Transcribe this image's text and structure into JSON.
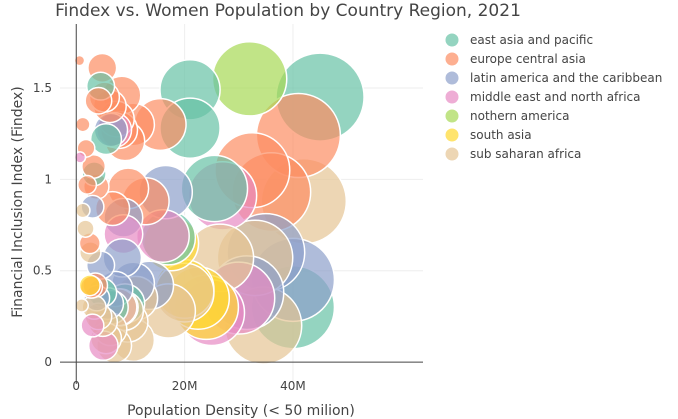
{
  "chart_data": {
    "type": "scatter",
    "title": "Findex vs. Women Population by Country Region, 2021",
    "xlabel": "Population Density (< 50 milion)",
    "ylabel": "Financial Inclusion Index (Findex)",
    "xlim": [
      -3000000,
      64000000
    ],
    "ylim": [
      -0.12,
      1.85
    ],
    "x_ticks": [
      {
        "value": 0,
        "label": "0"
      },
      {
        "value": 20000000,
        "label": "20M"
      },
      {
        "value": 40000000,
        "label": "40M"
      }
    ],
    "y_ticks": [
      {
        "value": 0,
        "label": "0"
      },
      {
        "value": 0.5,
        "label": "0.5"
      },
      {
        "value": 1,
        "label": "1"
      },
      {
        "value": 1.5,
        "label": "1.5"
      }
    ],
    "grid": true,
    "legend_position": "right",
    "series": [
      {
        "name": "east asia and pacific",
        "color": "#66c2a5",
        "points": [
          {
            "x": 45000000,
            "y": 1.45,
            "size": 45000000
          },
          {
            "x": 40000000,
            "y": 0.3,
            "size": 40000000
          },
          {
            "x": 25500000,
            "y": 0.95,
            "size": 25500000
          },
          {
            "x": 21000000,
            "y": 1.49,
            "size": 21000000
          },
          {
            "x": 21000000,
            "y": 1.28,
            "size": 21000000
          },
          {
            "x": 17000000,
            "y": 0.68,
            "size": 17000000
          },
          {
            "x": 3300000,
            "y": 1.03,
            "size": 3300000
          },
          {
            "x": 4500000,
            "y": 1.51,
            "size": 4500000
          },
          {
            "x": 4800000,
            "y": 0.38,
            "size": 4800000
          },
          {
            "x": 5500000,
            "y": 1.22,
            "size": 5500000
          },
          {
            "x": 6500000,
            "y": 0.3,
            "size": 6500000
          },
          {
            "x": 9000000,
            "y": 0.32,
            "size": 9000000
          }
        ]
      },
      {
        "name": "europe central asia",
        "color": "#fc8d62",
        "points": [
          {
            "x": 600000,
            "y": 1.65,
            "size": 600000
          },
          {
            "x": 1200000,
            "y": 1.3,
            "size": 1200000
          },
          {
            "x": 1800000,
            "y": 1.17,
            "size": 1800000
          },
          {
            "x": 2000000,
            "y": 0.97,
            "size": 2000000
          },
          {
            "x": 2500000,
            "y": 0.65,
            "size": 2500000
          },
          {
            "x": 2800000,
            "y": 0.41,
            "size": 2800000
          },
          {
            "x": 3200000,
            "y": 1.07,
            "size": 3200000
          },
          {
            "x": 3500000,
            "y": 0.42,
            "size": 3500000
          },
          {
            "x": 3700000,
            "y": 0.96,
            "size": 3700000
          },
          {
            "x": 4100000,
            "y": 1.43,
            "size": 4100000
          },
          {
            "x": 4800000,
            "y": 1.61,
            "size": 4800000
          },
          {
            "x": 5200000,
            "y": 1.45,
            "size": 5200000
          },
          {
            "x": 6200000,
            "y": 1.4,
            "size": 6200000
          },
          {
            "x": 6700000,
            "y": 0.84,
            "size": 6700000
          },
          {
            "x": 7400000,
            "y": 1.33,
            "size": 7400000
          },
          {
            "x": 7900000,
            "y": 1.27,
            "size": 7900000
          },
          {
            "x": 8400000,
            "y": 1.46,
            "size": 8400000
          },
          {
            "x": 9000000,
            "y": 1.21,
            "size": 9000000
          },
          {
            "x": 9600000,
            "y": 0.95,
            "size": 9600000
          },
          {
            "x": 10500000,
            "y": 1.3,
            "size": 10500000
          },
          {
            "x": 12800000,
            "y": 0.88,
            "size": 12800000
          },
          {
            "x": 15500000,
            "y": 1.3,
            "size": 15500000
          },
          {
            "x": 32500000,
            "y": 1.05,
            "size": 32500000
          },
          {
            "x": 36000000,
            "y": 0.93,
            "size": 36000000
          },
          {
            "x": 41000000,
            "y": 1.24,
            "size": 41000000
          }
        ]
      },
      {
        "name": "latin america and the caribbean",
        "color": "#8da0cb",
        "points": [
          {
            "x": 3000000,
            "y": 0.85,
            "size": 3000000
          },
          {
            "x": 3800000,
            "y": 0.35,
            "size": 3800000
          },
          {
            "x": 4500000,
            "y": 0.53,
            "size": 4500000
          },
          {
            "x": 5800000,
            "y": 0.32,
            "size": 5800000
          },
          {
            "x": 6400000,
            "y": 1.27,
            "size": 6400000
          },
          {
            "x": 7200000,
            "y": 0.4,
            "size": 7200000
          },
          {
            "x": 8500000,
            "y": 0.57,
            "size": 8500000
          },
          {
            "x": 8700000,
            "y": 0.79,
            "size": 8700000
          },
          {
            "x": 10500000,
            "y": 0.43,
            "size": 10500000
          },
          {
            "x": 13500000,
            "y": 0.42,
            "size": 13500000
          },
          {
            "x": 16500000,
            "y": 0.93,
            "size": 16500000
          },
          {
            "x": 31500000,
            "y": 0.38,
            "size": 31500000
          },
          {
            "x": 35000000,
            "y": 0.6,
            "size": 35000000
          },
          {
            "x": 40000000,
            "y": 0.45,
            "size": 40000000
          }
        ]
      },
      {
        "name": "middle east and north africa",
        "color": "#e78ac3",
        "points": [
          {
            "x": 700000,
            "y": 1.12,
            "size": 700000
          },
          {
            "x": 3000000,
            "y": 0.2,
            "size": 3000000
          },
          {
            "x": 5000000,
            "y": 0.09,
            "size": 5000000
          },
          {
            "x": 7000000,
            "y": 1.27,
            "size": 7000000
          },
          {
            "x": 8000000,
            "y": 0.3,
            "size": 8000000
          },
          {
            "x": 8700000,
            "y": 0.7,
            "size": 8700000
          },
          {
            "x": 16000000,
            "y": 0.69,
            "size": 16000000
          },
          {
            "x": 25000000,
            "y": 0.27,
            "size": 25000000
          },
          {
            "x": 27000000,
            "y": 0.91,
            "size": 27000000
          },
          {
            "x": 30000000,
            "y": 0.35,
            "size": 30000000
          }
        ]
      },
      {
        "name": "nothern america",
        "color": "#a6d854",
        "points": [
          {
            "x": 32000000,
            "y": 1.55,
            "size": 32000000
          }
        ]
      },
      {
        "name": "south asia",
        "color": "#ffd92f",
        "points": [
          {
            "x": 2500000,
            "y": 0.42,
            "size": 2500000
          },
          {
            "x": 17500000,
            "y": 0.65,
            "size": 17500000
          },
          {
            "x": 20000000,
            "y": 0.4,
            "size": 20000000
          },
          {
            "x": 24000000,
            "y": 0.3,
            "size": 24000000
          },
          {
            "x": 22500000,
            "y": 0.35,
            "size": 22500000
          }
        ]
      },
      {
        "name": "sub saharan africa",
        "color": "#e5c494",
        "points": [
          {
            "x": 1000000,
            "y": 0.31,
            "size": 1000000
          },
          {
            "x": 1200000,
            "y": 0.83,
            "size": 1200000
          },
          {
            "x": 1700000,
            "y": 0.73,
            "size": 1700000
          },
          {
            "x": 2600000,
            "y": 0.6,
            "size": 2600000
          },
          {
            "x": 3300000,
            "y": 0.3,
            "size": 3300000
          },
          {
            "x": 4100000,
            "y": 0.25,
            "size": 4100000
          },
          {
            "x": 4900000,
            "y": 0.22,
            "size": 4900000
          },
          {
            "x": 5500000,
            "y": 0.13,
            "size": 5500000
          },
          {
            "x": 6300000,
            "y": 0.18,
            "size": 6300000
          },
          {
            "x": 7000000,
            "y": 0.09,
            "size": 7000000
          },
          {
            "x": 7800000,
            "y": 0.3,
            "size": 7800000
          },
          {
            "x": 8800000,
            "y": 0.28,
            "size": 8800000
          },
          {
            "x": 9500000,
            "y": 0.22,
            "size": 9500000
          },
          {
            "x": 10500000,
            "y": 0.12,
            "size": 10500000
          },
          {
            "x": 11000000,
            "y": 0.35,
            "size": 11000000
          },
          {
            "x": 17000000,
            "y": 0.28,
            "size": 17000000
          },
          {
            "x": 20000000,
            "y": 0.38,
            "size": 20000000
          },
          {
            "x": 26500000,
            "y": 0.57,
            "size": 26500000
          },
          {
            "x": 33000000,
            "y": 0.57,
            "size": 33000000
          },
          {
            "x": 34500000,
            "y": 0.2,
            "size": 34500000
          },
          {
            "x": 42000000,
            "y": 0.88,
            "size": 42000000
          }
        ]
      }
    ]
  }
}
